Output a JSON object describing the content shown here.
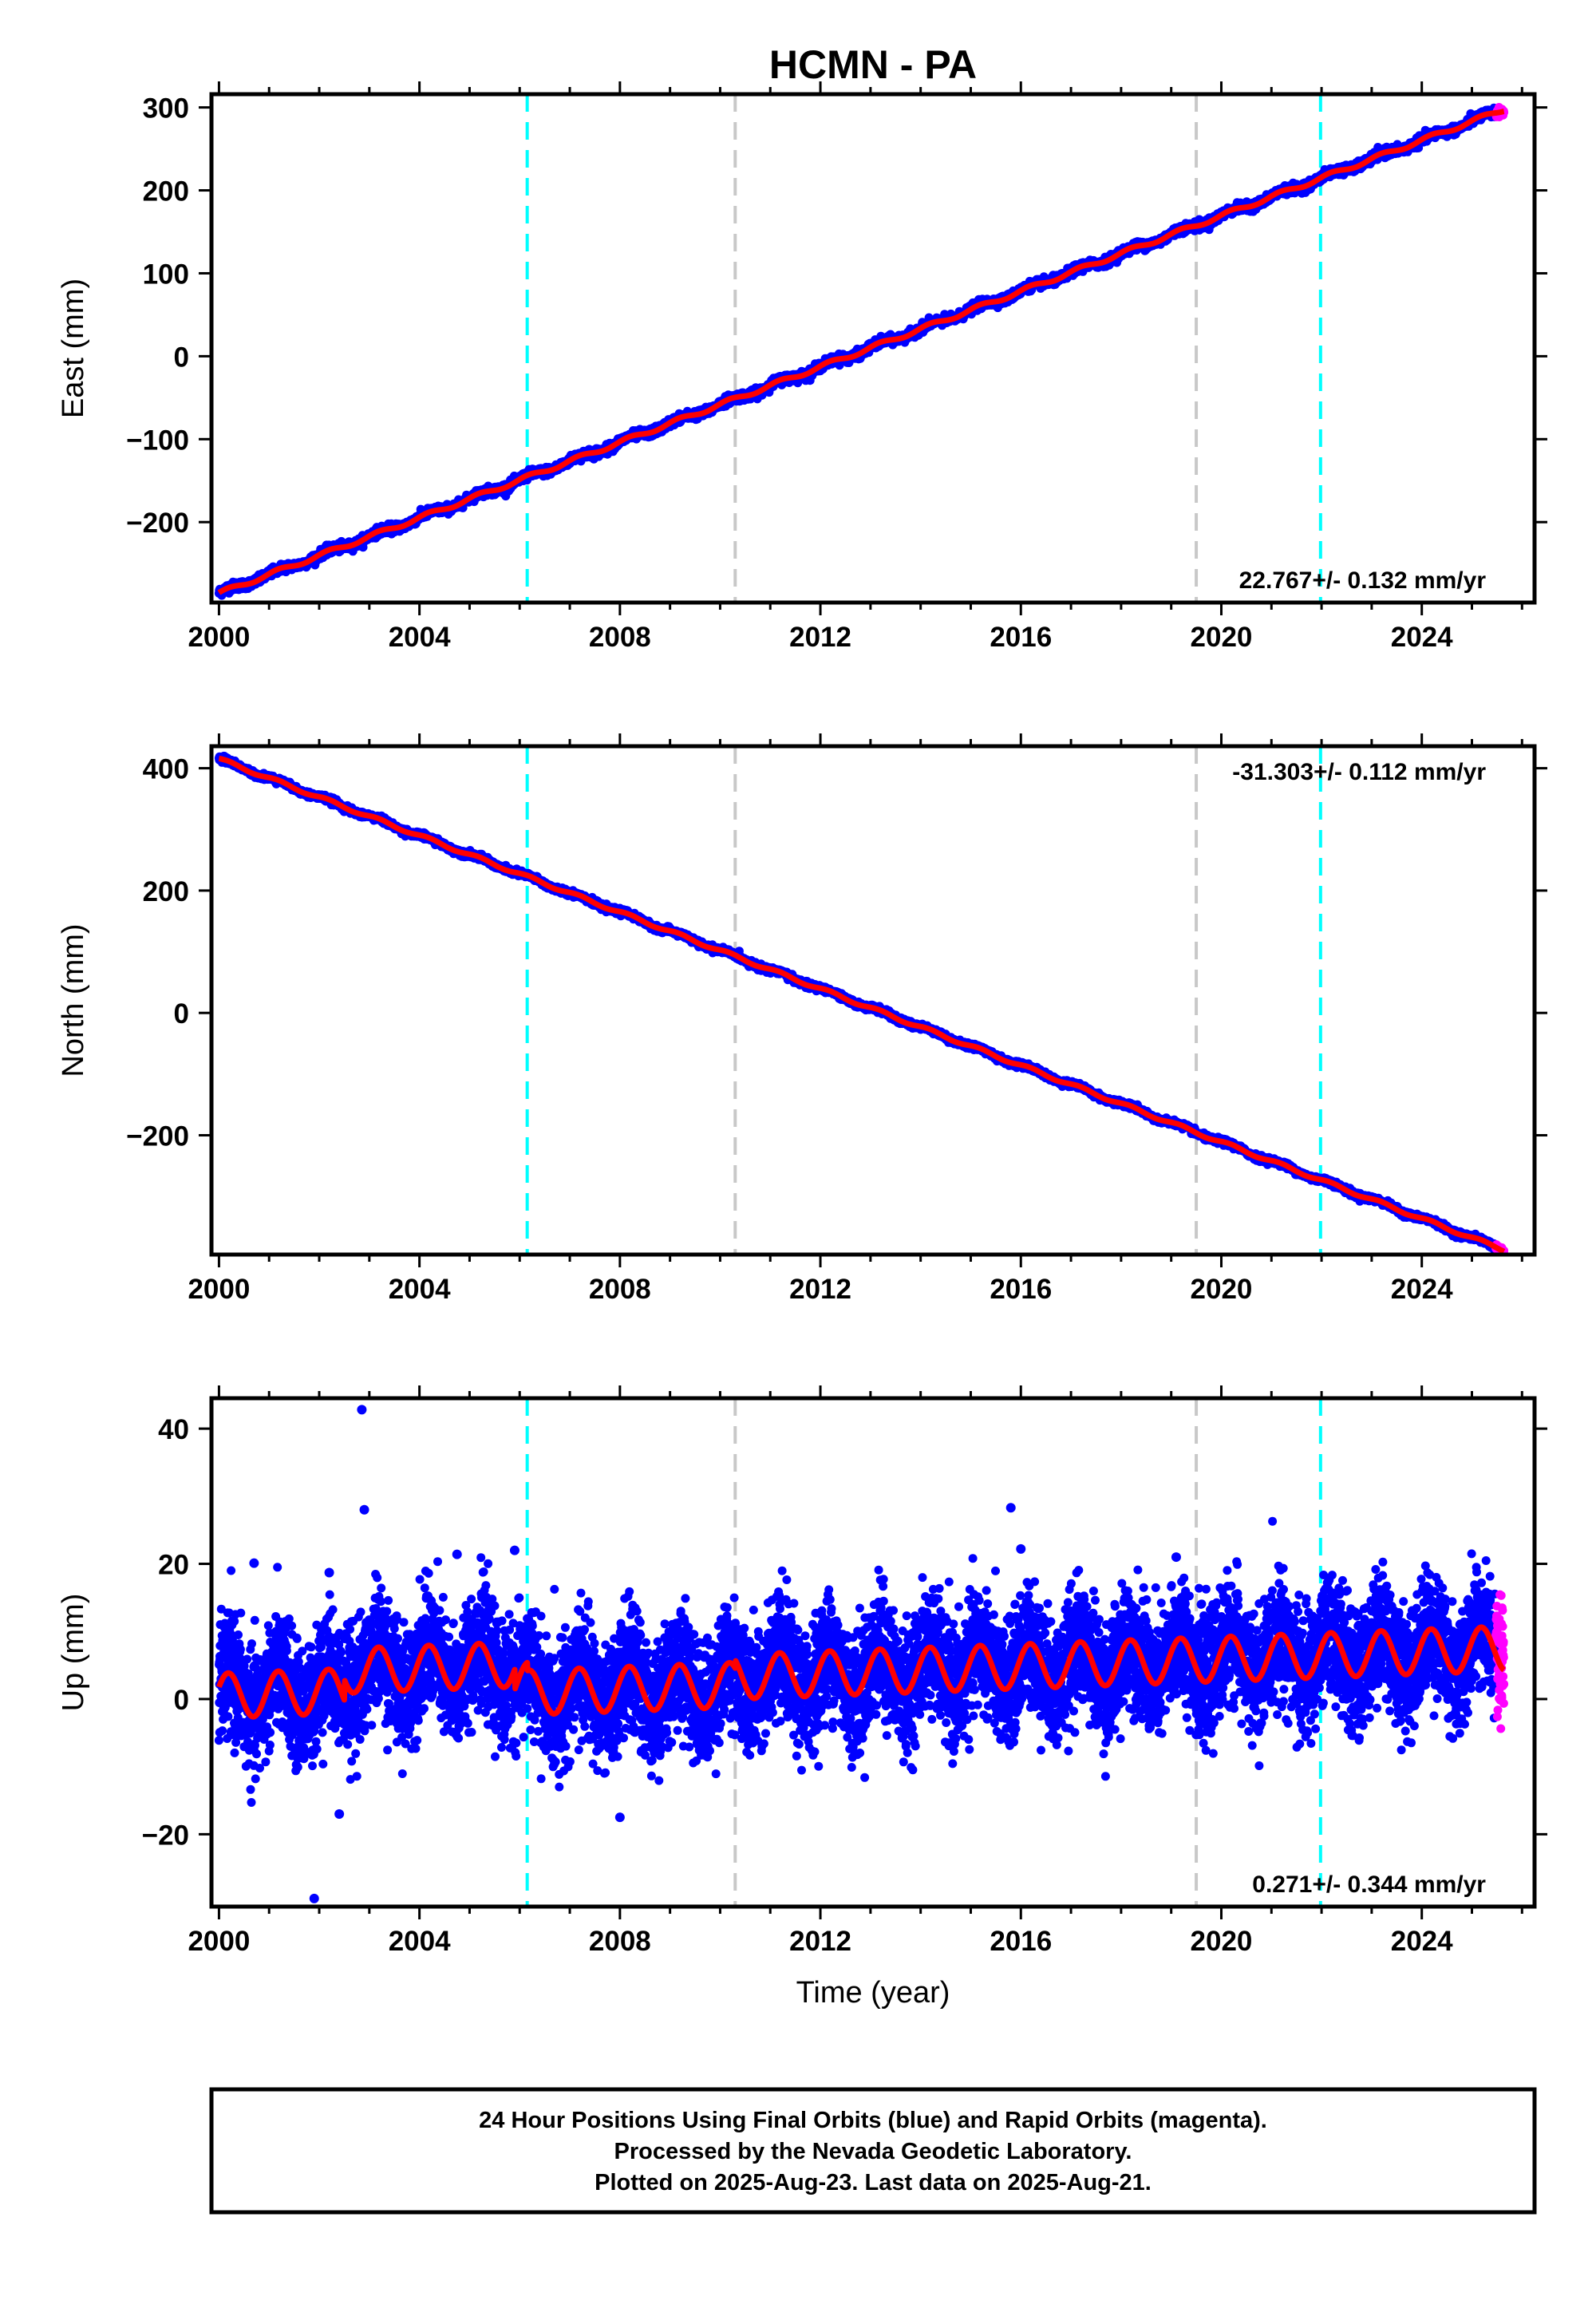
{
  "chart_data": [
    {
      "type": "scatter",
      "title": "HCMN - PA",
      "ylabel": "East (mm)",
      "xlabel": "",
      "xlim": [
        1999.85,
        2026.25
      ],
      "ylim": [
        -297,
        316
      ],
      "yticks": [
        -200,
        -100,
        0,
        100,
        200,
        300
      ],
      "xticks": [
        2000,
        2004,
        2008,
        2012,
        2016,
        2020,
        2024
      ],
      "rate_label": "22.767+/- 0.132 mm/yr",
      "rate_position": "bottom-right",
      "model": {
        "start": 2000.0,
        "end": 2025.64,
        "offset": -286.0,
        "rate": 22.767,
        "amp": 2.5
      },
      "noise": 2.6,
      "series": [
        {
          "name": "Final Orbits",
          "color": "#0000ff",
          "x_range": [
            2000.0,
            2025.48
          ]
        },
        {
          "name": "Rapid Orbits",
          "color": "#ff00ff",
          "x_range": [
            2025.48,
            2025.64
          ]
        }
      ]
    },
    {
      "type": "scatter",
      "title": "",
      "ylabel": "North (mm)",
      "xlabel": "",
      "xlim": [
        1999.85,
        2026.25
      ],
      "ylim": [
        -395,
        436
      ],
      "yticks": [
        -200,
        0,
        200,
        400
      ],
      "xticks": [
        2000,
        2004,
        2008,
        2012,
        2016,
        2020,
        2024
      ],
      "rate_label": "-31.303+/- 0.112 mm/yr",
      "rate_position": "top-right",
      "model": {
        "start": 2000.0,
        "end": 2025.64,
        "offset": 415.0,
        "rate": -31.303,
        "amp": 2.5
      },
      "noise": 2.4,
      "series": [
        {
          "name": "Final Orbits",
          "color": "#0000ff",
          "x_range": [
            2000.0,
            2025.48
          ]
        },
        {
          "name": "Rapid Orbits",
          "color": "#ff00ff",
          "x_range": [
            2025.48,
            2025.64
          ]
        }
      ]
    },
    {
      "type": "scatter",
      "title": "",
      "ylabel": "Up (mm)",
      "xlabel": "Time (year)",
      "xlim": [
        1999.85,
        2026.25
      ],
      "ylim": [
        -30.7,
        44.5
      ],
      "yticks": [
        -20,
        0,
        20,
        40
      ],
      "xticks": [
        2000,
        2004,
        2008,
        2012,
        2016,
        2020,
        2024
      ],
      "rate_label": "0.271+/- 0.344 mm/yr",
      "rate_position": "bottom-right",
      "model": {
        "start": 2000.0,
        "end": 2025.64,
        "offset": 0.5,
        "rate": 0.271,
        "amp": 3.3
      },
      "noise": 4.3,
      "series": [
        {
          "name": "Final Orbits",
          "color": "#0000ff",
          "x_range": [
            2000.0,
            2025.48
          ]
        },
        {
          "name": "Rapid Orbits",
          "color": "#ff00ff",
          "x_range": [
            2025.48,
            2025.64
          ]
        }
      ],
      "outliers": [
        {
          "x": 2002.85,
          "y": 42.8
        },
        {
          "x": 2002.9,
          "y": 28.0
        },
        {
          "x": 2001.9,
          "y": -29.5
        },
        {
          "x": 2002.4,
          "y": -17.0
        },
        {
          "x": 2005.9,
          "y": 22.0
        },
        {
          "x": 2015.8,
          "y": 28.3
        },
        {
          "x": 2000.7,
          "y": 20.1
        },
        {
          "x": 2004.75,
          "y": 21.4
        },
        {
          "x": 2016.0,
          "y": 22.2
        },
        {
          "x": 2008.0,
          "y": -17.5
        },
        {
          "x": 2002.2,
          "y": 18.7
        },
        {
          "x": 2019.1,
          "y": 21.0
        }
      ]
    }
  ],
  "markers": {
    "cyan_years": [
      2006.15,
      2021.98
    ],
    "gray_years": [
      2010.3,
      2019.5
    ],
    "cyan_color": "#00ffff",
    "gray_color": "#c8c8c8"
  },
  "fit_color": "#ff0000",
  "footer": {
    "line1": "24 Hour Positions Using Final Orbits (blue) and Rapid Orbits (magenta).",
    "line2": "Processed by the Nevada Geodetic Laboratory.",
    "line3": "Plotted on 2025-Aug-23. Last data on 2025-Aug-21."
  }
}
